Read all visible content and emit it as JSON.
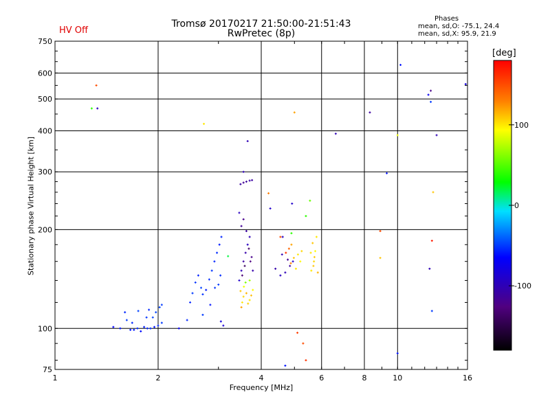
{
  "header": {
    "title": "Tromsø 20170217 21:50:00-21:51:43",
    "subtitle": "RwPretec (8p)",
    "hv_status": "HV Off",
    "stats_title": "Phases",
    "stats_o": "mean, sd,O: -75.1, 24.4",
    "stats_x": "mean, sd,X:  95.9, 21.9"
  },
  "colors": {
    "hv_status": "#e00000",
    "grid": "#000000",
    "background": "#ffffff"
  },
  "chart_data": {
    "type": "scatter",
    "title": "Tromsø 20170217 21:50:00-21:51:43",
    "subtitle": "RwPretec (8p)",
    "xlabel": "Frequency [MHz]",
    "ylabel": "Stationary phase Virtual Height [km]",
    "xscale": "log",
    "yscale": "log",
    "xlim": [
      1,
      16
    ],
    "ylim": [
      75,
      750
    ],
    "x_gridlines": [
      2,
      4,
      6,
      8,
      10,
      16
    ],
    "y_gridlines": [
      100,
      200,
      300,
      400,
      500,
      600
    ],
    "x_tick_labels": [
      {
        "v": 1,
        "t": "1"
      },
      {
        "v": 2,
        "t": "2"
      },
      {
        "v": 4,
        "t": "4"
      },
      {
        "v": 6,
        "t": "6"
      },
      {
        "v": 8,
        "t": "8"
      },
      {
        "v": 10,
        "t": "10"
      },
      {
        "v": 16,
        "t": "16"
      }
    ],
    "y_tick_labels": [
      {
        "v": 75,
        "t": "75"
      },
      {
        "v": 100,
        "t": "100"
      },
      {
        "v": 200,
        "t": "200"
      },
      {
        "v": 300,
        "t": "300"
      },
      {
        "v": 400,
        "t": "400"
      },
      {
        "v": 500,
        "t": "500"
      },
      {
        "v": 600,
        "t": "600"
      },
      {
        "v": 750,
        "t": "750"
      }
    ],
    "colorbar": {
      "label": "[deg]",
      "range": [
        -180,
        180
      ],
      "ticks": [
        {
          "v": 100,
          "t": "100"
        },
        {
          "v": 0,
          "t": "0"
        },
        {
          "v": -100,
          "t": "-100"
        }
      ]
    },
    "points": [
      [
        1.28,
        468,
        40
      ],
      [
        1.33,
        468,
        -95
      ],
      [
        1.32,
        550,
        150
      ],
      [
        2.72,
        420,
        100
      ],
      [
        1.48,
        101,
        -65
      ],
      [
        1.6,
        112,
        -55
      ],
      [
        1.62,
        106,
        -50
      ],
      [
        1.66,
        99,
        -60
      ],
      [
        1.7,
        99,
        -58
      ],
      [
        1.74,
        100,
        -55
      ],
      [
        1.78,
        98,
        -62
      ],
      [
        1.82,
        101,
        -58
      ],
      [
        1.86,
        100,
        -55
      ],
      [
        1.9,
        100,
        -52
      ],
      [
        1.95,
        101,
        -60
      ],
      [
        2.0,
        102,
        -55
      ],
      [
        2.05,
        104,
        -50
      ],
      [
        1.93,
        108,
        -48
      ],
      [
        1.97,
        112,
        -48
      ],
      [
        2.02,
        116,
        -47
      ],
      [
        2.05,
        118,
        -50
      ],
      [
        1.88,
        114,
        -55
      ],
      [
        1.75,
        113,
        -48
      ],
      [
        1.85,
        108,
        -52
      ],
      [
        1.68,
        104,
        -55
      ],
      [
        1.55,
        100,
        -60
      ],
      [
        2.3,
        100,
        -70
      ],
      [
        2.43,
        106,
        -55
      ],
      [
        2.48,
        120,
        -55
      ],
      [
        2.52,
        128,
        -50
      ],
      [
        2.57,
        138,
        -52
      ],
      [
        2.62,
        145,
        -56
      ],
      [
        2.67,
        133,
        -48
      ],
      [
        2.7,
        127,
        -52
      ],
      [
        2.76,
        131,
        -58
      ],
      [
        2.82,
        141,
        -54
      ],
      [
        2.87,
        150,
        -52
      ],
      [
        2.92,
        160,
        -56
      ],
      [
        2.97,
        170,
        -54
      ],
      [
        3.02,
        180,
        -58
      ],
      [
        3.06,
        190,
        -55
      ],
      [
        2.93,
        133,
        -52
      ],
      [
        3.0,
        136,
        -50
      ],
      [
        3.04,
        145,
        -53
      ],
      [
        2.84,
        118,
        -60
      ],
      [
        3.1,
        102,
        -85
      ],
      [
        3.05,
        105,
        -80
      ],
      [
        3.2,
        166,
        20
      ],
      [
        2.7,
        110,
        -50
      ],
      [
        3.45,
        140,
        -90
      ],
      [
        3.5,
        150,
        -100
      ],
      [
        3.55,
        160,
        -110
      ],
      [
        3.6,
        170,
        -105
      ],
      [
        3.65,
        180,
        -95
      ],
      [
        3.7,
        190,
        -100
      ],
      [
        3.75,
        165,
        -120
      ],
      [
        3.52,
        145,
        -130
      ],
      [
        3.58,
        155,
        -140
      ],
      [
        3.62,
        198,
        -110
      ],
      [
        3.68,
        175,
        -135
      ],
      [
        3.72,
        160,
        -125
      ],
      [
        3.78,
        150,
        -105
      ],
      [
        3.5,
        205,
        -115
      ],
      [
        3.55,
        215,
        -120
      ],
      [
        3.48,
        275,
        -110
      ],
      [
        3.55,
        278,
        -115
      ],
      [
        3.62,
        280,
        -112
      ],
      [
        3.7,
        282,
        -108
      ],
      [
        3.76,
        283,
        -110
      ],
      [
        3.55,
        300,
        -100
      ],
      [
        3.65,
        372,
        -100
      ],
      [
        3.45,
        225,
        -95
      ],
      [
        3.48,
        130,
        110
      ],
      [
        3.55,
        125,
        105
      ],
      [
        3.62,
        128,
        115
      ],
      [
        3.7,
        122,
        100
      ],
      [
        3.78,
        131,
        95
      ],
      [
        3.56,
        134,
        90
      ],
      [
        3.66,
        119,
        108
      ],
      [
        3.52,
        120,
        100
      ],
      [
        3.74,
        126,
        112
      ],
      [
        3.6,
        138,
        60
      ],
      [
        3.7,
        140,
        70
      ],
      [
        3.5,
        116,
        120
      ],
      [
        4.4,
        152,
        -105
      ],
      [
        4.55,
        145,
        -95
      ],
      [
        4.7,
        148,
        -100
      ],
      [
        4.85,
        155,
        -110
      ],
      [
        4.95,
        160,
        -90
      ],
      [
        4.6,
        168,
        -100
      ],
      [
        4.78,
        162,
        -115
      ],
      [
        4.72,
        170,
        160
      ],
      [
        4.82,
        175,
        140
      ],
      [
        4.9,
        180,
        120
      ],
      [
        4.98,
        164,
        110
      ],
      [
        5.05,
        152,
        100
      ],
      [
        5.12,
        168,
        100
      ],
      [
        5.2,
        160,
        95
      ],
      [
        5.25,
        172,
        105
      ],
      [
        4.88,
        158,
        130
      ],
      [
        4.62,
        190,
        -95
      ],
      [
        4.25,
        232,
        -90
      ],
      [
        4.92,
        240,
        -90
      ],
      [
        4.9,
        195,
        40
      ],
      [
        4.55,
        190,
        150
      ],
      [
        4.2,
        258,
        130
      ],
      [
        5.6,
        150,
        100
      ],
      [
        5.7,
        160,
        105
      ],
      [
        5.75,
        172,
        95
      ],
      [
        5.65,
        182,
        110
      ],
      [
        5.8,
        190,
        100
      ],
      [
        5.72,
        165,
        108
      ],
      [
        5.85,
        148,
        115
      ],
      [
        5.58,
        170,
        100
      ],
      [
        5.68,
        155,
        110
      ],
      [
        5.4,
        220,
        40
      ],
      [
        5.55,
        245,
        55
      ],
      [
        5.3,
        90,
        150
      ],
      [
        5.4,
        80,
        160
      ],
      [
        5.1,
        97,
        155
      ],
      [
        4.7,
        77,
        -60
      ],
      [
        5.0,
        455,
        120
      ],
      [
        6.6,
        392,
        -100
      ],
      [
        8.3,
        455,
        -110
      ],
      [
        8.9,
        198,
        150
      ],
      [
        9.3,
        297,
        -60
      ],
      [
        8.9,
        164,
        110
      ],
      [
        10.2,
        635,
        -60
      ],
      [
        10.0,
        388,
        90
      ],
      [
        12.5,
        530,
        -120
      ],
      [
        12.3,
        515,
        -70
      ],
      [
        12.5,
        490,
        -50
      ],
      [
        12.4,
        152,
        -100
      ],
      [
        12.6,
        185,
        170
      ],
      [
        12.7,
        260,
        110
      ],
      [
        12.6,
        113,
        -50
      ],
      [
        13.0,
        388,
        -100
      ],
      [
        15.8,
        555,
        -80
      ],
      [
        10.0,
        84,
        -60
      ]
    ]
  }
}
